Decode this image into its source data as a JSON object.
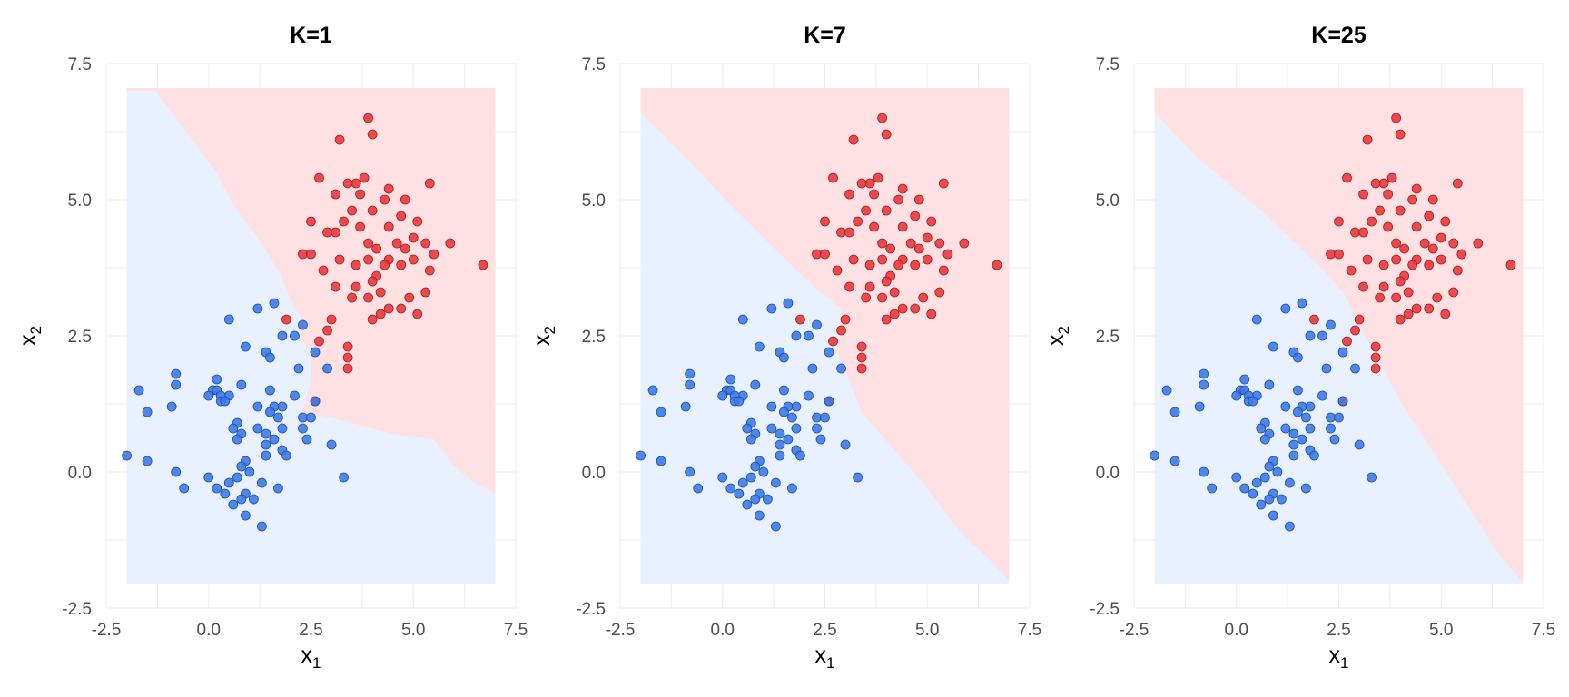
{
  "colors": {
    "class_red": "#e8393c",
    "class_blue": "#3e7ae8",
    "region_red": "#ffe1e3",
    "region_blue": "#e8f1fd",
    "grid": "#ebebeb"
  },
  "chart_data": [
    {
      "type": "scatter",
      "title": "K=1",
      "xlabel": {
        "base": "x",
        "sub": "1"
      },
      "ylabel": {
        "base": "x",
        "sub": "2"
      },
      "xlim": [
        -2.5,
        7.5
      ],
      "ylim": [
        -2.5,
        7.5
      ],
      "xticks": [
        "-2.5",
        "0.0",
        "2.5",
        "5.0",
        "7.5"
      ],
      "yticks": [
        "-2.5",
        "0.0",
        "2.5",
        "5.0",
        "7.5"
      ],
      "grid": true,
      "boundary": [
        [
          -2.0,
          7.0
        ],
        [
          -1.3,
          7.0
        ],
        [
          -0.6,
          6.3
        ],
        [
          0.2,
          5.5
        ],
        [
          0.6,
          4.9
        ],
        [
          1.2,
          4.3
        ],
        [
          1.7,
          3.7
        ],
        [
          2.1,
          3.0
        ],
        [
          2.3,
          2.8
        ],
        [
          2.2,
          2.5
        ],
        [
          2.5,
          2.2
        ],
        [
          2.5,
          1.7
        ],
        [
          2.3,
          1.1
        ],
        [
          3.0,
          1.0
        ],
        [
          4.5,
          0.7
        ],
        [
          5.5,
          0.6
        ],
        [
          6.0,
          0.1
        ],
        [
          6.5,
          -0.2
        ],
        [
          7.0,
          -0.4
        ]
      ]
    },
    {
      "type": "scatter",
      "title": "K=7",
      "xlabel": {
        "base": "x",
        "sub": "1"
      },
      "ylabel": {
        "base": "x",
        "sub": "2"
      },
      "xlim": [
        -2.5,
        7.5
      ],
      "ylim": [
        -2.5,
        7.5
      ],
      "xticks": [
        "-2.5",
        "0.0",
        "2.5",
        "5.0",
        "7.5"
      ],
      "yticks": [
        "-2.5",
        "0.0",
        "2.5",
        "5.0",
        "7.5"
      ],
      "grid": true,
      "boundary": [
        [
          -2.0,
          6.6
        ],
        [
          -0.8,
          5.7
        ],
        [
          0.2,
          4.9
        ],
        [
          1.0,
          4.3
        ],
        [
          1.8,
          3.7
        ],
        [
          2.4,
          3.3
        ],
        [
          2.9,
          3.0
        ],
        [
          2.8,
          2.2
        ],
        [
          3.4,
          1.1
        ],
        [
          4.2,
          0.4
        ],
        [
          5.0,
          -0.3
        ],
        [
          5.8,
          -1.1
        ],
        [
          6.5,
          -1.6
        ],
        [
          7.0,
          -2.0
        ]
      ]
    },
    {
      "type": "scatter",
      "title": "K=25",
      "xlabel": {
        "base": "x",
        "sub": "1"
      },
      "ylabel": {
        "base": "x",
        "sub": "2"
      },
      "xlim": [
        -2.5,
        7.5
      ],
      "ylim": [
        -2.5,
        7.5
      ],
      "xticks": [
        "-2.5",
        "0.0",
        "2.5",
        "5.0",
        "7.5"
      ],
      "yticks": [
        "-2.5",
        "0.0",
        "2.5",
        "5.0",
        "7.5"
      ],
      "grid": true,
      "boundary": [
        [
          -2.0,
          6.6
        ],
        [
          -1.0,
          5.8
        ],
        [
          -0.2,
          5.3
        ],
        [
          0.6,
          4.8
        ],
        [
          1.3,
          4.3
        ],
        [
          2.0,
          3.8
        ],
        [
          2.6,
          3.3
        ],
        [
          3.0,
          2.7
        ],
        [
          3.5,
          2.0
        ],
        [
          4.0,
          1.3
        ],
        [
          4.6,
          0.6
        ],
        [
          5.2,
          -0.1
        ],
        [
          5.8,
          -0.8
        ],
        [
          6.4,
          -1.5
        ],
        [
          7.0,
          -2.1
        ]
      ]
    }
  ],
  "points": {
    "red": [
      [
        3.9,
        6.5
      ],
      [
        4.0,
        6.2
      ],
      [
        3.2,
        6.1
      ],
      [
        2.7,
        5.4
      ],
      [
        3.6,
        5.3
      ],
      [
        3.8,
        5.4
      ],
      [
        4.4,
        5.2
      ],
      [
        3.4,
        5.3
      ],
      [
        5.4,
        5.3
      ],
      [
        3.1,
        5.1
      ],
      [
        3.7,
        5.1
      ],
      [
        4.3,
        5.0
      ],
      [
        4.8,
        5.0
      ],
      [
        3.5,
        4.8
      ],
      [
        4.0,
        4.8
      ],
      [
        4.7,
        4.7
      ],
      [
        5.1,
        4.6
      ],
      [
        2.5,
        4.6
      ],
      [
        3.3,
        4.6
      ],
      [
        3.7,
        4.5
      ],
      [
        4.4,
        4.5
      ],
      [
        2.9,
        4.4
      ],
      [
        3.1,
        4.4
      ],
      [
        5.0,
        4.3
      ],
      [
        3.9,
        4.2
      ],
      [
        4.6,
        4.2
      ],
      [
        5.3,
        4.2
      ],
      [
        5.9,
        4.2
      ],
      [
        4.1,
        4.1
      ],
      [
        4.8,
        4.1
      ],
      [
        2.3,
        4.0
      ],
      [
        2.5,
        4.0
      ],
      [
        3.2,
        3.9
      ],
      [
        3.9,
        3.9
      ],
      [
        4.4,
        3.9
      ],
      [
        5.0,
        3.9
      ],
      [
        5.5,
        4.0
      ],
      [
        3.6,
        3.8
      ],
      [
        4.3,
        3.8
      ],
      [
        4.7,
        3.8
      ],
      [
        5.4,
        3.7
      ],
      [
        2.8,
        3.7
      ],
      [
        4.1,
        3.6
      ],
      [
        4.0,
        3.5
      ],
      [
        3.6,
        3.4
      ],
      [
        3.1,
        3.4
      ],
      [
        4.2,
        3.3
      ],
      [
        4.9,
        3.2
      ],
      [
        5.3,
        3.3
      ],
      [
        3.5,
        3.2
      ],
      [
        3.9,
        3.2
      ],
      [
        4.7,
        3.0
      ],
      [
        4.4,
        3.0
      ],
      [
        5.1,
        2.9
      ],
      [
        4.2,
        2.9
      ],
      [
        4.0,
        2.8
      ],
      [
        3.0,
        2.8
      ],
      [
        2.9,
        2.6
      ],
      [
        2.7,
        2.4
      ],
      [
        3.4,
        2.3
      ],
      [
        3.4,
        2.1
      ],
      [
        3.4,
        1.9
      ],
      [
        6.7,
        3.8
      ],
      [
        1.9,
        2.8
      ],
      [
        2.6,
        1.3
      ]
    ],
    "blue": [
      [
        1.6,
        3.1
      ],
      [
        1.2,
        3.0
      ],
      [
        0.5,
        2.8
      ],
      [
        2.3,
        2.7
      ],
      [
        1.8,
        2.5
      ],
      [
        2.1,
        2.5
      ],
      [
        0.9,
        2.3
      ],
      [
        1.4,
        2.2
      ],
      [
        2.6,
        2.2
      ],
      [
        1.5,
        2.1
      ],
      [
        2.2,
        1.9
      ],
      [
        -0.8,
        1.8
      ],
      [
        2.9,
        1.9
      ],
      [
        0.2,
        1.7
      ],
      [
        -0.8,
        1.6
      ],
      [
        0.8,
        1.6
      ],
      [
        0.1,
        1.5
      ],
      [
        0.2,
        1.5
      ],
      [
        0.5,
        1.4
      ],
      [
        -1.7,
        1.5
      ],
      [
        1.5,
        1.5
      ],
      [
        0.3,
        1.4
      ],
      [
        2.1,
        1.4
      ],
      [
        0.0,
        1.4
      ],
      [
        0.3,
        1.3
      ],
      [
        0.4,
        1.3
      ],
      [
        1.8,
        1.2
      ],
      [
        -0.9,
        1.2
      ],
      [
        1.6,
        1.2
      ],
      [
        2.6,
        1.3
      ],
      [
        1.2,
        1.2
      ],
      [
        1.5,
        1.1
      ],
      [
        -1.5,
        1.1
      ],
      [
        1.7,
        1.0
      ],
      [
        2.3,
        1.0
      ],
      [
        2.5,
        1.0
      ],
      [
        0.7,
        0.9
      ],
      [
        2.3,
        0.8
      ],
      [
        1.2,
        0.8
      ],
      [
        0.6,
        0.8
      ],
      [
        1.4,
        0.7
      ],
      [
        1.8,
        0.8
      ],
      [
        0.8,
        0.7
      ],
      [
        1.6,
        0.6
      ],
      [
        2.4,
        0.6
      ],
      [
        0.7,
        0.6
      ],
      [
        1.4,
        0.5
      ],
      [
        1.8,
        0.4
      ],
      [
        3.0,
        0.5
      ],
      [
        1.9,
        0.3
      ],
      [
        1.4,
        0.3
      ],
      [
        -2.0,
        0.3
      ],
      [
        0.9,
        0.2
      ],
      [
        -1.5,
        0.2
      ],
      [
        0.8,
        0.1
      ],
      [
        -0.8,
        0.0
      ],
      [
        1.0,
        0.0
      ],
      [
        0.7,
        -0.1
      ],
      [
        0.0,
        -0.1
      ],
      [
        3.3,
        -0.1
      ],
      [
        1.3,
        -0.2
      ],
      [
        0.5,
        -0.2
      ],
      [
        0.2,
        -0.3
      ],
      [
        -0.6,
        -0.3
      ],
      [
        1.7,
        -0.3
      ],
      [
        0.4,
        -0.4
      ],
      [
        0.9,
        -0.4
      ],
      [
        0.8,
        -0.5
      ],
      [
        1.1,
        -0.5
      ],
      [
        0.6,
        -0.6
      ],
      [
        0.9,
        -0.8
      ],
      [
        1.3,
        -1.0
      ]
    ]
  }
}
